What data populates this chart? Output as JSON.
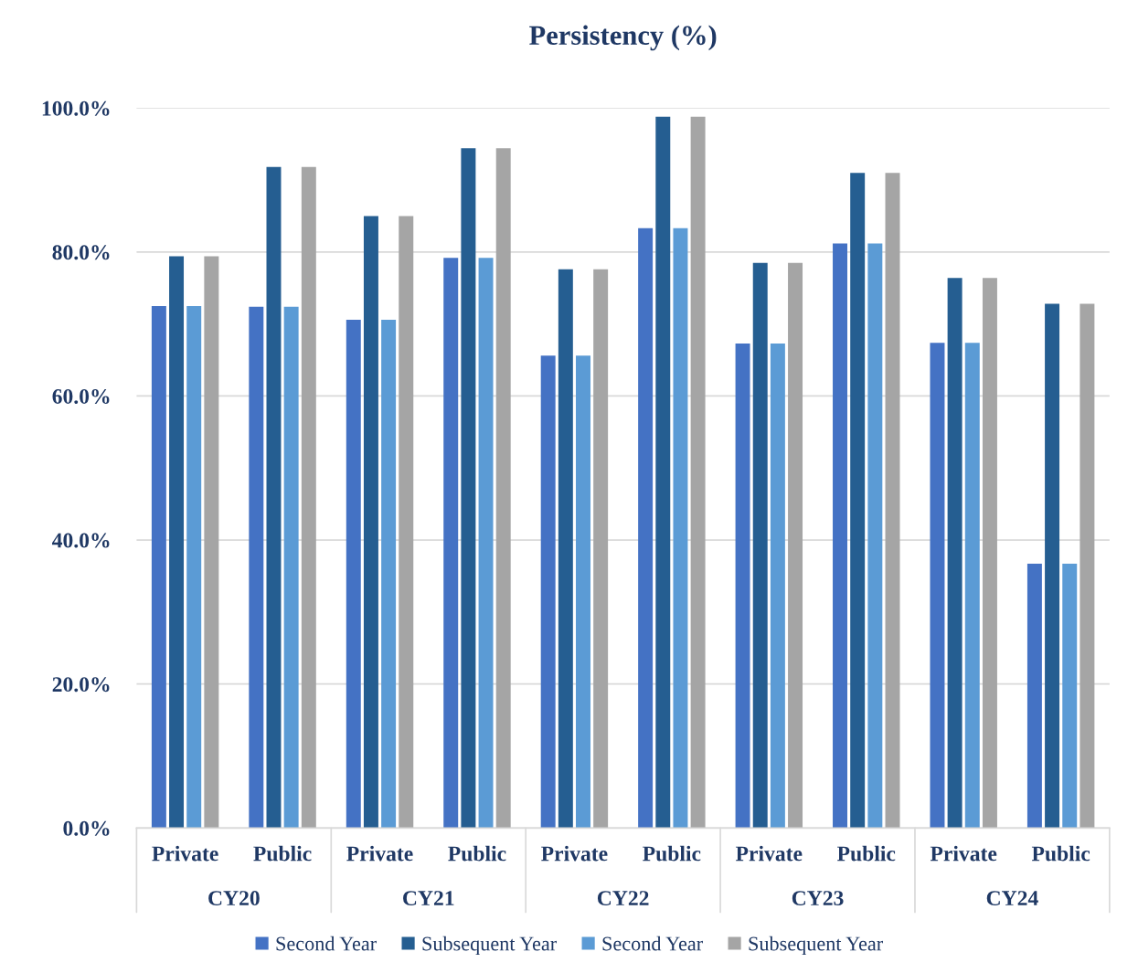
{
  "chart_data": {
    "type": "bar",
    "title": "Persistency (%)",
    "categories": [
      "Private",
      "Public",
      "Private",
      "Public",
      "Private",
      "Public",
      "Private",
      "Public",
      "Private",
      "Public"
    ],
    "annotations": [
      "CY20",
      "CY21",
      "CY22",
      "CY23",
      "CY24"
    ],
    "series": [
      {
        "name": "Second Year",
        "color": "#4472c4",
        "values": [
          72.5,
          72.4,
          70.6,
          79.2,
          65.6,
          83.3,
          67.3,
          81.2,
          67.4,
          36.7
        ]
      },
      {
        "name": "Subsequent Year",
        "color": "#255e91",
        "values": [
          79.4,
          91.8,
          85.0,
          94.4,
          77.6,
          98.8,
          78.5,
          91.0,
          76.4,
          72.8
        ]
      },
      {
        "name": "Second Year",
        "color": "#5b9bd5",
        "values": [
          72.5,
          72.4,
          70.6,
          79.2,
          65.6,
          83.3,
          67.3,
          81.2,
          67.4,
          36.7
        ]
      },
      {
        "name": "Subsequent Year",
        "color": "#a5a5a5",
        "values": [
          79.4,
          91.8,
          85.0,
          94.4,
          77.6,
          98.8,
          78.5,
          91.0,
          76.4,
          72.8
        ]
      }
    ],
    "ylim": [
      0,
      100
    ],
    "yticks": [
      {
        "value": 0,
        "label": "0.0%"
      },
      {
        "value": 20,
        "label": "20.0%"
      },
      {
        "value": 40,
        "label": "40.0%"
      },
      {
        "value": 60,
        "label": "60.0%"
      },
      {
        "value": 80,
        "label": "80.0%"
      },
      {
        "value": 100,
        "label": "100.0%"
      }
    ],
    "grid": "y",
    "legend": "bottom"
  }
}
